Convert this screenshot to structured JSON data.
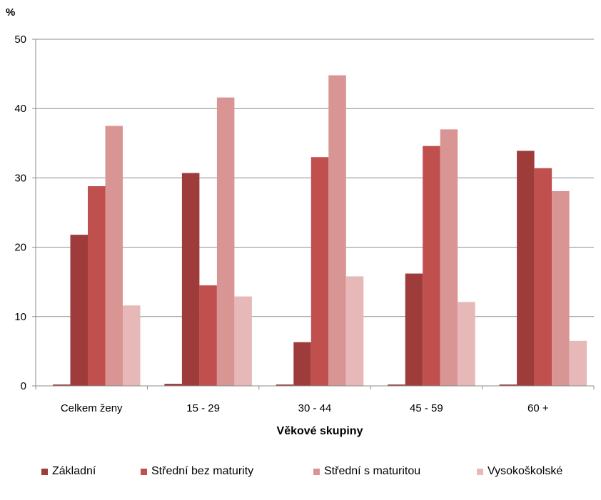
{
  "chart_data": {
    "type": "bar",
    "title": "",
    "ylabel": "%",
    "xlabel": "Věkové skupiny",
    "ylim": [
      0,
      50
    ],
    "yticks": [
      0,
      10,
      20,
      30,
      40,
      50
    ],
    "grid": true,
    "legend": "bottom",
    "categories": [
      "Celkem ženy",
      "15 - 29",
      "30 - 44",
      "45 - 59",
      "60 +"
    ],
    "series": [
      {
        "name": "Základní",
        "color": "#9e3b3b",
        "values": [
          0.2,
          0.3,
          0.2,
          0.2,
          0.2
        ]
      },
      {
        "name": "Základní",
        "color": "#9e3b3b",
        "values": [
          21.8,
          30.7,
          6.3,
          16.2,
          33.9
        ]
      },
      {
        "name": "Střední bez maturity",
        "color": "#c0504d",
        "values": [
          28.8,
          14.5,
          33.0,
          34.6,
          31.4
        ]
      },
      {
        "name": "Střední s maturitou",
        "color": "#d99594",
        "values": [
          37.5,
          41.6,
          44.8,
          37.0,
          28.1
        ]
      },
      {
        "name": "Vysokoškolské",
        "color": "#e6b9b8",
        "values": [
          11.6,
          12.9,
          15.8,
          12.1,
          6.5
        ]
      }
    ]
  },
  "legend_items": [
    {
      "label": "Základní",
      "color": "#9e3b3b"
    },
    {
      "label": "Střední bez maturity",
      "color": "#c0504d"
    },
    {
      "label": "Střední s maturitou",
      "color": "#d99594"
    },
    {
      "label": "Vysokoškolské",
      "color": "#e6b9b8"
    }
  ]
}
